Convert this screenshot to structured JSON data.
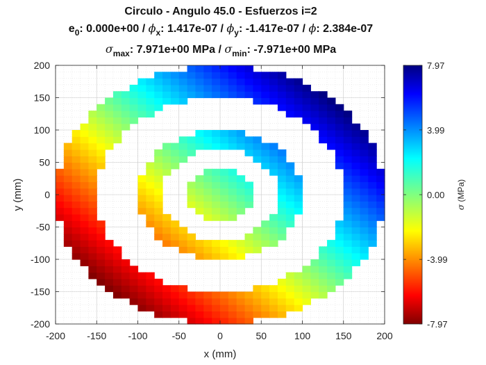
{
  "title": {
    "line1": "Circulo  -  Angulo 45.0  -  Esfuerzos i=2",
    "line2": {
      "e_label": "e",
      "e_sub": "0",
      "e_value": ": 0.000e+00  /  ",
      "phix_sym": "ϕ",
      "phix_sub": "x",
      "phix_value": ": 1.417e-07  /  ",
      "phiy_sym": "ϕ",
      "phiy_sub": "y",
      "phiy_value": ": -1.417e-07  /  ",
      "phi_sym": "ϕ",
      "phi_value": ": 2.384e-07"
    },
    "line3": {
      "smax_sym": "σ",
      "smax_sub": "max",
      "smax_value": ": 7.971e+00 MPa  /  ",
      "smin_sym": "σ",
      "smin_sub": "min",
      "smin_value": ": -7.971e+00 MPa"
    }
  },
  "colorbar": {
    "label_sym": "σ",
    "label_text": " (MPa)",
    "min": -7.97,
    "max": 7.97,
    "ticks": [
      {
        "value": 7.97,
        "label": "7.97"
      },
      {
        "value": 3.99,
        "label": "3.99"
      },
      {
        "value": 0.0,
        "label": "0.00"
      },
      {
        "value": -3.99,
        "label": "-3.99"
      },
      {
        "value": -7.97,
        "label": "-7.97"
      }
    ],
    "colormap": "jet"
  },
  "chart_data": {
    "type": "heatmap",
    "xlabel": "x (mm)",
    "ylabel": "y (mm)",
    "xlim": [
      -200,
      200
    ],
    "ylim": [
      -200,
      200
    ],
    "xticks": [
      -200,
      -150,
      -100,
      -50,
      0,
      50,
      100,
      150,
      200
    ],
    "yticks": [
      -200,
      -150,
      -100,
      -50,
      0,
      50,
      100,
      150,
      200
    ],
    "grid": true,
    "cell_size": 10,
    "field": "sigma = k * (x + y)",
    "field_coefficient": 0.0282,
    "regions": [
      {
        "name": "outer ring",
        "r_inner": 150,
        "r_outer": 200
      },
      {
        "name": "middle ring",
        "r_inner": 70,
        "r_outer": 100
      },
      {
        "name": "center disc",
        "r_inner": 0,
        "r_outer": 40
      }
    ],
    "value_range": [
      -7.971,
      7.971
    ]
  }
}
